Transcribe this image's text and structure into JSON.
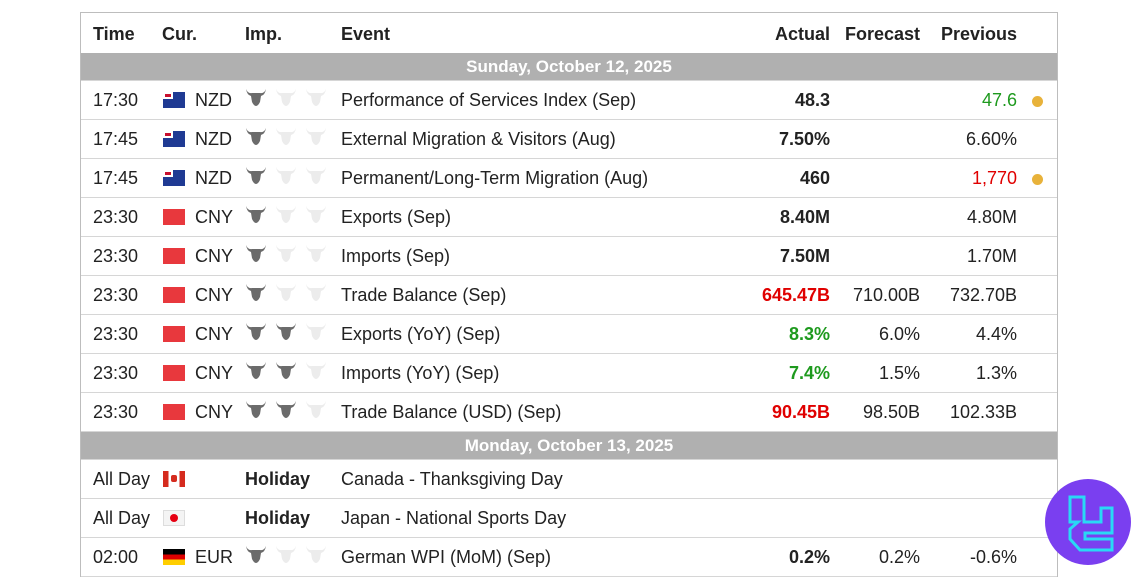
{
  "header": {
    "time": "Time",
    "cur": "Cur.",
    "imp": "Imp.",
    "event": "Event",
    "actual": "Actual",
    "forecast": "Forecast",
    "previous": "Previous"
  },
  "colors": {
    "green": "#1e9a1e",
    "red": "#e00000",
    "dot": "#e8b23a",
    "date_bar": "#b0b0b0",
    "logo": "#7a3ff0"
  },
  "days": [
    {
      "date": "Sunday, October 12, 2025",
      "events": [
        {
          "time": "17:30",
          "flag": "nz",
          "cur": "NZD",
          "imp": 1,
          "event": "Performance of Services Index (Sep)",
          "actual": "48.3",
          "forecast": "",
          "previous": "47.6",
          "previous_color": "green",
          "dot": true
        },
        {
          "time": "17:45",
          "flag": "nz",
          "cur": "NZD",
          "imp": 1,
          "event": "External Migration & Visitors (Aug)",
          "actual": "7.50%",
          "forecast": "",
          "previous": "6.60%"
        },
        {
          "time": "17:45",
          "flag": "nz",
          "cur": "NZD",
          "imp": 1,
          "event": "Permanent/Long-Term Migration (Aug)",
          "actual": "460",
          "forecast": "",
          "previous": "1,770",
          "previous_color": "red",
          "dot": true
        },
        {
          "time": "23:30",
          "flag": "cn",
          "cur": "CNY",
          "imp": 1,
          "event": "Exports (Sep)",
          "actual": "8.40M",
          "forecast": "",
          "previous": "4.80M"
        },
        {
          "time": "23:30",
          "flag": "cn",
          "cur": "CNY",
          "imp": 1,
          "event": "Imports (Sep)",
          "actual": "7.50M",
          "forecast": "",
          "previous": "1.70M"
        },
        {
          "time": "23:30",
          "flag": "cn",
          "cur": "CNY",
          "imp": 1,
          "event": "Trade Balance (Sep)",
          "actual": "645.47B",
          "actual_color": "red",
          "forecast": "710.00B",
          "previous": "732.70B"
        },
        {
          "time": "23:30",
          "flag": "cn",
          "cur": "CNY",
          "imp": 2,
          "event": "Exports (YoY) (Sep)",
          "actual": "8.3%",
          "actual_color": "green",
          "forecast": "6.0%",
          "previous": "4.4%"
        },
        {
          "time": "23:30",
          "flag": "cn",
          "cur": "CNY",
          "imp": 2,
          "event": "Imports (YoY) (Sep)",
          "actual": "7.4%",
          "actual_color": "green",
          "forecast": "1.5%",
          "previous": "1.3%"
        },
        {
          "time": "23:30",
          "flag": "cn",
          "cur": "CNY",
          "imp": 2,
          "event": "Trade Balance (USD) (Sep)",
          "actual": "90.45B",
          "actual_color": "red",
          "forecast": "98.50B",
          "previous": "102.33B"
        }
      ]
    },
    {
      "date": "Monday, October 13, 2025",
      "events": [
        {
          "time": "All Day",
          "flag": "ca",
          "cur": "",
          "holiday": "Holiday",
          "event": "Canada - Thanksgiving Day",
          "actual": "",
          "forecast": "",
          "previous": ""
        },
        {
          "time": "All Day",
          "flag": "jp",
          "cur": "",
          "holiday": "Holiday",
          "event": "Japan - National Sports Day",
          "actual": "",
          "forecast": "",
          "previous": ""
        },
        {
          "time": "02:00",
          "flag": "de",
          "cur": "EUR",
          "imp": 1,
          "event": "German WPI (MoM) (Sep)",
          "actual": "0.2%",
          "forecast": "0.2%",
          "previous": "-0.6%"
        }
      ]
    }
  ]
}
